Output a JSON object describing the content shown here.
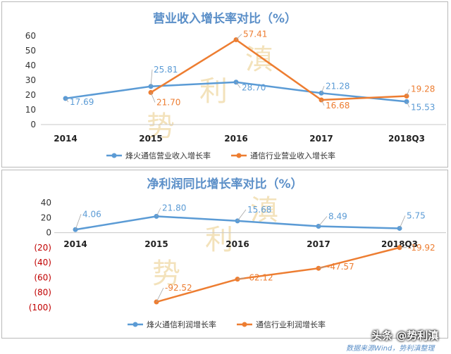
{
  "chart_data": [
    {
      "type": "line",
      "title": "营业收入增长率对比（%）",
      "categories": [
        "2014",
        "2015",
        "2016",
        "2017",
        "2018Q3"
      ],
      "ylim": [
        0,
        60
      ],
      "yticks": [
        "0",
        "10",
        "20",
        "30",
        "40",
        "50",
        "60"
      ],
      "series": [
        {
          "name": "烽火通信营业收入增长率",
          "color": "#5b9bd5",
          "values": [
            17.69,
            25.81,
            28.7,
            21.28,
            15.53
          ],
          "labels": [
            "17.69",
            "25.81",
            "28.70",
            "21.28",
            "15.53"
          ]
        },
        {
          "name": "通信行业营业收入增长率",
          "color": "#ed7d31",
          "values": [
            null,
            21.7,
            57.41,
            16.68,
            19.28
          ],
          "labels": [
            "",
            "21.70",
            "57.41",
            "16.68",
            "19.28"
          ]
        }
      ],
      "grid": false,
      "legend": "bottom",
      "watermark": [
        "势",
        "利",
        "滇"
      ]
    },
    {
      "type": "line",
      "title": "净利润同比增长率对比（%）",
      "categories": [
        "2014",
        "2015",
        "2016",
        "2017",
        "2018Q3"
      ],
      "ylim": [
        -100,
        40
      ],
      "yticks": [
        "40",
        "20",
        "0",
        "(20)",
        "(40)",
        "(60)",
        "(80)",
        "(100)"
      ],
      "series": [
        {
          "name": "烽火通信利润增长率",
          "color": "#5b9bd5",
          "values": [
            4.06,
            21.8,
            15.68,
            8.49,
            5.75
          ],
          "labels": [
            "4.06",
            "21.80",
            "15.68",
            "8.49",
            "5.75"
          ]
        },
        {
          "name": "通信行业利润增长率",
          "color": "#ed7d31",
          "values": [
            null,
            -92.52,
            -62.12,
            -47.57,
            -19.92
          ],
          "labels": [
            "",
            "-92.52",
            "-62.12",
            "-47.57",
            "-19.92"
          ]
        }
      ],
      "grid": false,
      "legend": "bottom",
      "watermark": [
        "势",
        "利",
        "滇"
      ]
    }
  ],
  "footer": {
    "source": "数据来源Wind，势利滇整理",
    "badge": "头条 @势利滇"
  }
}
